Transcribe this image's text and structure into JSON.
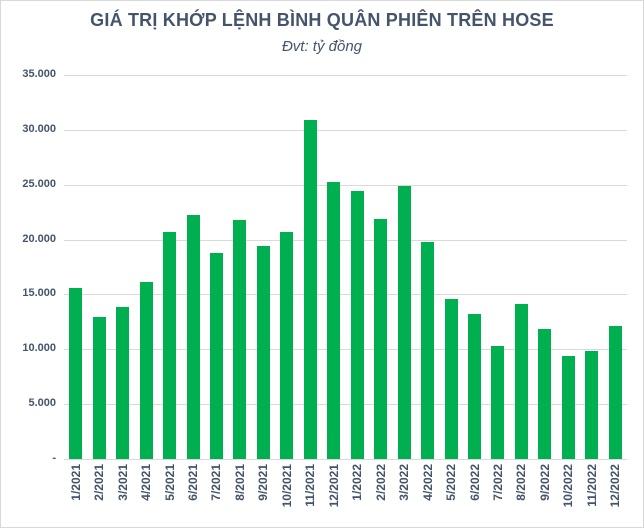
{
  "chart_data": {
    "type": "bar",
    "title": "GIÁ TRỊ KHỚP LỆNH BÌNH QUÂN PHIÊN TRÊN HOSE",
    "subtitle": "Đvt: tỷ đồng",
    "xlabel": "",
    "ylabel": "",
    "ylim": [
      0,
      35000
    ],
    "grid": true,
    "legend": null,
    "color": "#00B050",
    "y_ticks": [
      "-",
      "5.000",
      "10.000",
      "15.000",
      "20.000",
      "25.000",
      "30.000",
      "35.000"
    ],
    "categories": [
      "1/2021",
      "2/2021",
      "3/2021",
      "4/2021",
      "5/2021",
      "6/2021",
      "7/2021",
      "8/2021",
      "9/2021",
      "10/2021",
      "11/2021",
      "12/2021",
      "1/2022",
      "2/2022",
      "3/2022",
      "4/2022",
      "5/2022",
      "6/2022",
      "7/2022",
      "8/2022",
      "9/2022",
      "10/2022",
      "11/2022",
      "12/2022"
    ],
    "values": [
      15600,
      12950,
      13870,
      16150,
      20710,
      22260,
      18800,
      21810,
      19430,
      20710,
      30930,
      25270,
      24450,
      21900,
      24900,
      19800,
      14600,
      13230,
      10310,
      14140,
      11860,
      9400,
      9850,
      12140
    ]
  }
}
